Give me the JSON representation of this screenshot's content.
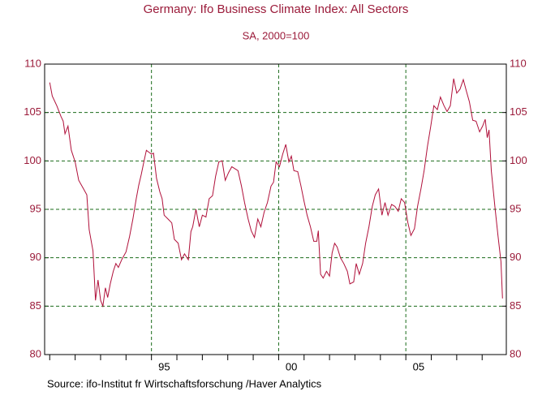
{
  "chart_data": {
    "type": "line",
    "title": "Germany: Ifo Business Climate Index: All Sectors",
    "subtitle": "SA, 2000=100",
    "source": "Source:  ifo-Institut fr Wirtschaftsforschung /Haver Analytics",
    "xlim": [
      1990.8,
      2008.95
    ],
    "xticks": [
      {
        "value": 1995.5,
        "label": "95"
      },
      {
        "value": 2000.5,
        "label": "00"
      },
      {
        "value": 2005.5,
        "label": "05"
      }
    ],
    "xgrid": [
      1995,
      2000,
      2005
    ],
    "xminorticks": [
      1991,
      1992,
      1993,
      1994,
      1995,
      1996,
      1997,
      1998,
      1999,
      2000,
      2001,
      2002,
      2003,
      2004,
      2005,
      2006,
      2007,
      2008
    ],
    "ylim": [
      80,
      110
    ],
    "yticks": [
      80,
      85,
      90,
      95,
      100,
      105,
      110
    ],
    "y2lim": [
      80,
      110
    ],
    "y2ticks": [
      80,
      85,
      90,
      95,
      100,
      105,
      110
    ],
    "grid": true,
    "series": [
      {
        "color": "#b0103a",
        "x": [
          1991.0,
          1991.1,
          1991.28,
          1991.44,
          1991.53,
          1991.6,
          1991.72,
          1991.85,
          1992.0,
          1992.14,
          1992.33,
          1992.46,
          1992.55,
          1992.7,
          1992.8,
          1992.9,
          1993.0,
          1993.09,
          1993.19,
          1993.28,
          1993.38,
          1993.5,
          1993.6,
          1993.7,
          1993.83,
          1994.0,
          1994.14,
          1994.27,
          1994.4,
          1994.5,
          1994.6,
          1994.7,
          1994.8,
          1994.9,
          1995.0,
          1995.08,
          1995.2,
          1995.33,
          1995.42,
          1995.5,
          1995.65,
          1995.8,
          1995.9,
          1996.05,
          1996.18,
          1996.3,
          1996.45,
          1996.55,
          1996.62,
          1996.75,
          1996.88,
          1997.0,
          1997.14,
          1997.27,
          1997.4,
          1997.52,
          1997.65,
          1997.78,
          1997.9,
          1998.03,
          1998.16,
          1998.28,
          1998.4,
          1998.54,
          1998.66,
          1998.8,
          1998.92,
          1999.05,
          1999.18,
          1999.3,
          1999.43,
          1999.56,
          1999.7,
          1999.8,
          1999.9,
          2000.03,
          2000.16,
          2000.28,
          2000.4,
          2000.5,
          2000.6,
          2000.75,
          2000.87,
          2001.0,
          2001.12,
          2001.25,
          2001.38,
          2001.5,
          2001.56,
          2001.65,
          2001.75,
          2001.88,
          2002.0,
          2002.1,
          2002.2,
          2002.3,
          2002.43,
          2002.56,
          2002.7,
          2002.8,
          2002.95,
          2003.05,
          2003.17,
          2003.3,
          2003.42,
          2003.55,
          2003.68,
          2003.8,
          2003.93,
          2004.06,
          2004.18,
          2004.3,
          2004.44,
          2004.57,
          2004.7,
          2004.82,
          2004.95,
          2005.08,
          2005.2,
          2005.34,
          2005.46,
          2005.6,
          2005.72,
          2005.85,
          2005.98,
          2006.1,
          2006.24,
          2006.36,
          2006.5,
          2006.62,
          2006.75,
          2006.88,
          2007.0,
          2007.13,
          2007.26,
          2007.38,
          2007.5,
          2007.63,
          2007.76,
          2007.9,
          2008.02,
          2008.12,
          2008.2,
          2008.27,
          2008.36,
          2008.5,
          2008.62,
          2008.74,
          2008.8
        ],
        "values": [
          108.1,
          106.7,
          105.7,
          104.6,
          104.1,
          102.8,
          103.6,
          101.1,
          99.9,
          98.0,
          97.1,
          96.5,
          92.9,
          90.7,
          85.6,
          87.7,
          85.6,
          85.0,
          86.9,
          85.9,
          87.3,
          88.6,
          89.4,
          89.0,
          89.8,
          90.6,
          92.2,
          94.0,
          96.1,
          97.5,
          98.6,
          99.9,
          101.1,
          100.9,
          100.7,
          100.8,
          98.2,
          96.8,
          96.1,
          94.4,
          94.0,
          93.6,
          91.9,
          91.5,
          89.8,
          90.4,
          89.8,
          92.7,
          93.2,
          95.0,
          93.2,
          94.4,
          94.2,
          96.1,
          96.4,
          98.4,
          99.9,
          100.0,
          98.0,
          98.8,
          99.4,
          99.2,
          99.0,
          97.4,
          95.7,
          94.0,
          92.8,
          92.1,
          94.0,
          93.2,
          94.7,
          95.7,
          97.4,
          97.8,
          99.9,
          99.4,
          100.7,
          101.7,
          99.9,
          100.5,
          99.0,
          98.9,
          97.5,
          95.8,
          94.4,
          93.2,
          91.7,
          91.7,
          92.8,
          88.3,
          87.9,
          88.6,
          88.1,
          90.5,
          91.5,
          91.1,
          90.0,
          89.4,
          88.6,
          87.3,
          87.5,
          89.4,
          88.3,
          89.4,
          91.5,
          93.2,
          95.3,
          96.5,
          97.1,
          94.4,
          95.7,
          94.4,
          95.5,
          95.3,
          94.8,
          96.1,
          95.7,
          93.6,
          92.3,
          93.0,
          95.3,
          97.2,
          99.0,
          101.5,
          103.6,
          105.7,
          105.3,
          106.6,
          105.7,
          105.1,
          105.7,
          108.5,
          107.0,
          107.4,
          108.4,
          107.2,
          106.1,
          104.2,
          104.1,
          103.0,
          103.6,
          104.3,
          102.4,
          103.2,
          99.0,
          95.3,
          92.3,
          89.6,
          85.8
        ]
      }
    ]
  }
}
